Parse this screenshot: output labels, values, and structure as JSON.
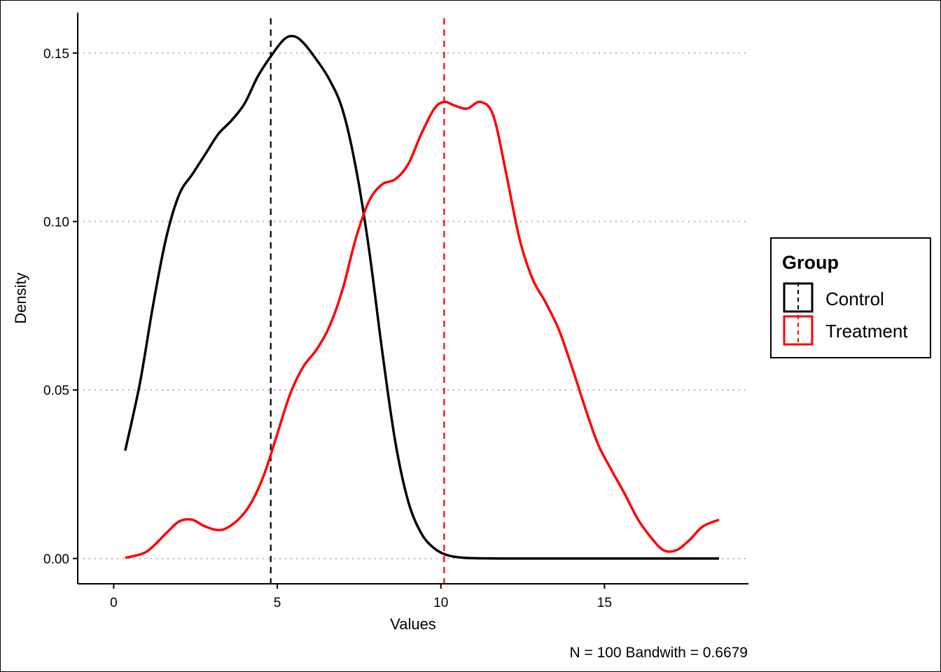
{
  "chart_data": {
    "type": "line",
    "subtype": "density",
    "xlabel": "Values",
    "ylabel": "Density",
    "xlim": [
      -1.1,
      19.4
    ],
    "ylim": [
      -0.0075,
      0.162
    ],
    "x_ticks": [
      0,
      5,
      10,
      15
    ],
    "x_tick_labels": [
      "0",
      "5",
      "10",
      "15"
    ],
    "y_ticks": [
      0.0,
      0.05,
      0.1,
      0.15
    ],
    "y_tick_labels": [
      "0.00",
      "0.05",
      "0.10",
      "0.15"
    ],
    "grid": "horizontal dotted",
    "legend": {
      "title": "Group",
      "position": "right",
      "entries": [
        "Control",
        "Treatment"
      ]
    },
    "caption": "N = 100  Bandwith = 0.6679",
    "series": [
      {
        "name": "Control",
        "color": "#000000",
        "mean": 4.8,
        "x": [
          0.35,
          0.8,
          1.2,
          1.6,
          2.0,
          2.4,
          2.8,
          3.2,
          3.6,
          4.0,
          4.4,
          4.8,
          5.2,
          5.5,
          5.8,
          6.2,
          6.6,
          7.0,
          7.4,
          7.8,
          8.2,
          8.6,
          9.0,
          9.4,
          9.8,
          10.2,
          10.6,
          11.0,
          12.0,
          14.0,
          16.0,
          18.5
        ],
        "y": [
          0.032,
          0.052,
          0.075,
          0.095,
          0.108,
          0.114,
          0.12,
          0.126,
          0.13,
          0.135,
          0.143,
          0.149,
          0.154,
          0.155,
          0.153,
          0.148,
          0.142,
          0.133,
          0.116,
          0.092,
          0.062,
          0.035,
          0.017,
          0.0075,
          0.003,
          0.001,
          0.0003,
          0.0001,
          0.0,
          0.0,
          0.0,
          0.0
        ]
      },
      {
        "name": "Treatment",
        "color": "#ff0000",
        "mean": 10.1,
        "x": [
          0.35,
          1.0,
          1.6,
          2.0,
          2.4,
          2.8,
          3.3,
          3.8,
          4.2,
          4.6,
          5.0,
          5.4,
          5.8,
          6.2,
          6.6,
          7.0,
          7.4,
          7.8,
          8.2,
          8.6,
          9.0,
          9.4,
          9.8,
          10.1,
          10.4,
          10.8,
          11.2,
          11.6,
          12.0,
          12.4,
          12.8,
          13.2,
          13.6,
          14.0,
          14.4,
          14.8,
          15.2,
          15.6,
          16.0,
          16.4,
          16.8,
          17.2,
          17.6,
          18.0,
          18.5
        ],
        "y": [
          0.0002,
          0.002,
          0.0075,
          0.011,
          0.0115,
          0.0095,
          0.0085,
          0.0115,
          0.0165,
          0.025,
          0.037,
          0.049,
          0.057,
          0.062,
          0.069,
          0.08,
          0.095,
          0.106,
          0.111,
          0.1125,
          0.117,
          0.126,
          0.1335,
          0.1355,
          0.1345,
          0.1335,
          0.1355,
          0.1315,
          0.114,
          0.095,
          0.083,
          0.076,
          0.068,
          0.057,
          0.045,
          0.034,
          0.0265,
          0.0195,
          0.012,
          0.0065,
          0.0025,
          0.0025,
          0.0055,
          0.0095,
          0.0115
        ]
      }
    ]
  }
}
